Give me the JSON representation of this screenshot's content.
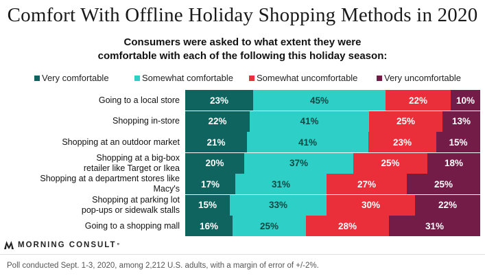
{
  "title": "Comfort With Offline Holiday Shopping Methods in 2020",
  "subtitle_line1": "Consumers were asked to what extent they were",
  "subtitle_line2": "comfortable with each of the following this holiday season:",
  "brand": "MORNING CONSULT",
  "brand_mark": "°",
  "footnote": "Poll conducted Sept. 1-3, 2020, among 2,212 U.S. adults, with a margin of error of +/-2%.",
  "chart_data": {
    "type": "bar",
    "orientation": "horizontal",
    "stacked": true,
    "percent_stacked": true,
    "title": "Comfort With Offline Holiday Shopping Methods in 2020",
    "categories": [
      [
        "Going to a local store"
      ],
      [
        "Shopping in-store"
      ],
      [
        "Shopping at an outdoor market"
      ],
      [
        "Shopping at a big-box",
        "retailer like Target or Ikea"
      ],
      [
        "Shopping at a department stores like Macy's"
      ],
      [
        "Shopping at parking lot",
        "pop-ups or sidewalk stalls"
      ],
      [
        "Going to a shopping mall"
      ]
    ],
    "series": [
      {
        "name": "Very comfortable",
        "color": "#10645f",
        "text_color": "#ffffff",
        "values": [
          23,
          22,
          21,
          20,
          17,
          15,
          16
        ]
      },
      {
        "name": "Somewhat comfortable",
        "color": "#2ecfc6",
        "text_color": "#0b4a45",
        "values": [
          45,
          41,
          41,
          37,
          31,
          33,
          25
        ]
      },
      {
        "name": "Somewhat uncomfortable",
        "color": "#ea2f3b",
        "text_color": "#ffffff",
        "values": [
          22,
          25,
          23,
          25,
          27,
          30,
          28
        ]
      },
      {
        "name": "Very uncomfortable",
        "color": "#721c47",
        "text_color": "#ffffff",
        "values": [
          10,
          13,
          15,
          18,
          25,
          22,
          31
        ]
      }
    ],
    "value_suffix": "%",
    "legend_position": "top",
    "grid": false
  }
}
